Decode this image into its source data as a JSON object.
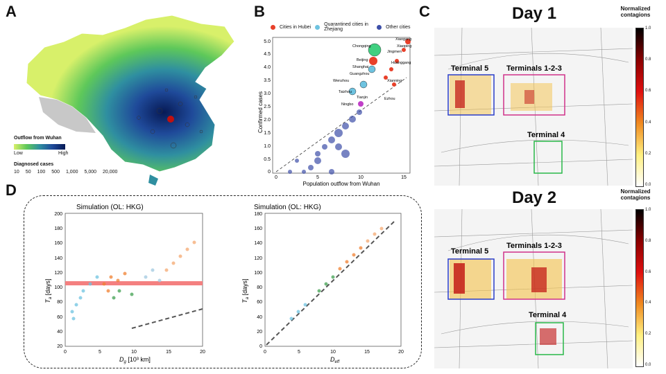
{
  "panels": {
    "a": {
      "letter": "A",
      "legend_title": "Outflow from Wuhan",
      "legend_low": "Low",
      "legend_high": "High",
      "size_title": "Diagnosed cases",
      "size_labels": [
        "10",
        "50",
        "100",
        "500",
        "1,000",
        "5,000",
        "20,000"
      ]
    },
    "b": {
      "letter": "B",
      "legend": [
        "Cities in Hubei",
        "Quarantined cities in Zhejiang",
        "Other cities"
      ],
      "legend_colors": [
        "#e8402a",
        "#6ec3e0",
        "#3d4fa8"
      ],
      "xlabel": "Population outflow from Wuhan",
      "ylabel": "Confirmed cases",
      "xticks": [
        "0",
        "5",
        "10",
        "15"
      ],
      "yticks": [
        "0",
        "0.5",
        "1.0",
        "1.5",
        "2.0",
        "2.5",
        "3.0",
        "3.5",
        "4.0",
        "4.5",
        "5.0"
      ],
      "city_labels": [
        "Chongqing",
        "Beijing",
        "Shanghai",
        "Guangzhou",
        "Wenzhou",
        "Taizhou",
        "Ningbo",
        "Tianjin",
        "Xiaogang",
        "Jingmen",
        "Xiaoping",
        "Huanggang",
        "Xianning",
        "Ezhou"
      ]
    },
    "c": {
      "letter": "C",
      "day1": "Day 1",
      "day2": "Day 2",
      "cbar_title": "Normalized contagions",
      "cbar_ticks": [
        "1.0",
        "0.8",
        "0.6",
        "0.4",
        "0.2",
        "0.0"
      ],
      "t5": "Terminal 5",
      "t123": "Terminals 1-2-3",
      "t4": "Terminal 4"
    },
    "d": {
      "letter": "D",
      "left_title": "Simulation (OL: HKG)",
      "right_title": "Simulation (OL: HKG)",
      "left_xlabel": "D",
      "left_xlabel_sub": "g",
      "left_xlabel_unit": " [10³ km]",
      "right_xlabel": "D",
      "right_xlabel_sub": "eff",
      "ylabel": "T",
      "ylabel_sub": "a",
      "ylabel_unit": " [days]",
      "left_yticks": [
        "20",
        "40",
        "60",
        "80",
        "100",
        "120",
        "140",
        "160",
        "180",
        "200"
      ],
      "left_xticks": [
        "0",
        "5",
        "10",
        "15",
        "20"
      ],
      "right_yticks": [
        "0",
        "20",
        "40",
        "60",
        "80",
        "100",
        "120",
        "140",
        "160",
        "180"
      ],
      "right_xticks": [
        "0",
        "5",
        "10",
        "15",
        "20"
      ]
    }
  },
  "colors": {
    "map_low": "#d9f06a",
    "map_high": "#0b2a6e",
    "heat": "#c01010",
    "t5_box": "#2a3cc8",
    "t123_box": "#d0308a",
    "t4_box": "#28b848"
  }
}
